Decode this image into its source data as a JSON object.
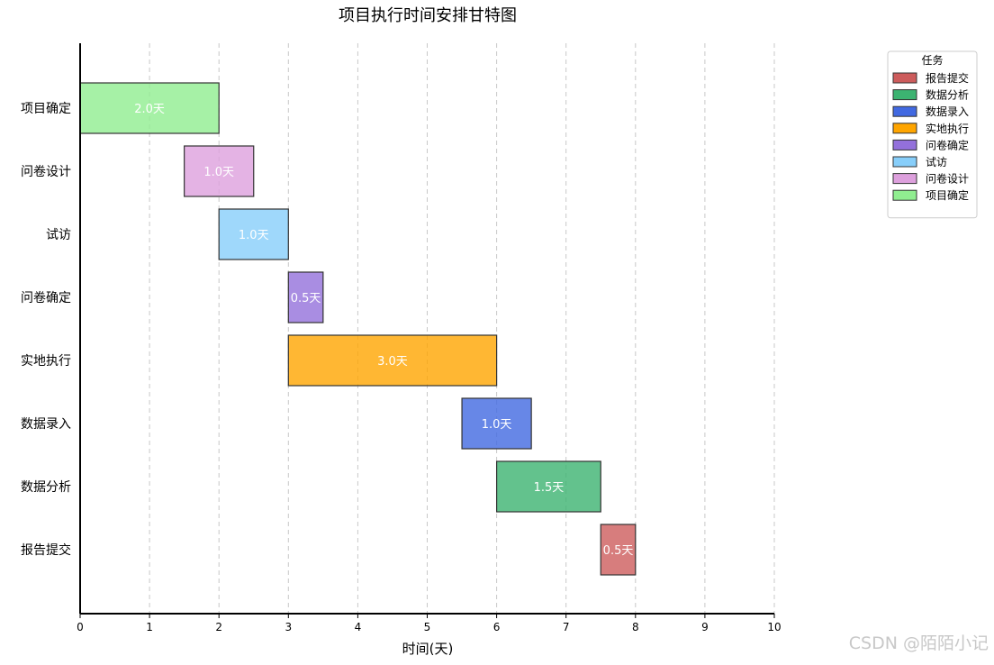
{
  "chart_data": {
    "type": "gantt",
    "title": "项目执行时间安排甘特图",
    "xlabel": "时间(天)",
    "ylabel": "",
    "xlim": [
      0,
      10
    ],
    "x_ticks": [
      0,
      1,
      2,
      3,
      4,
      5,
      6,
      7,
      8,
      9,
      10
    ],
    "grid": "vertical dashed",
    "tasks": [
      {
        "name": "项目确定",
        "start": 0.0,
        "duration": 2.0,
        "label": "2.0天",
        "color": "#90EE90"
      },
      {
        "name": "问卷设计",
        "start": 1.5,
        "duration": 1.0,
        "label": "1.0天",
        "color": "#DDA0DD"
      },
      {
        "name": "试访",
        "start": 2.0,
        "duration": 1.0,
        "label": "1.0天",
        "color": "#87CEFA"
      },
      {
        "name": "问卷确定",
        "start": 3.0,
        "duration": 0.5,
        "label": "0.5天",
        "color": "#9370DB"
      },
      {
        "name": "实地执行",
        "start": 3.0,
        "duration": 3.0,
        "label": "3.0天",
        "color": "#FFA500"
      },
      {
        "name": "数据录入",
        "start": 5.5,
        "duration": 1.0,
        "label": "1.0天",
        "color": "#4169E1"
      },
      {
        "name": "数据分析",
        "start": 6.0,
        "duration": 1.5,
        "label": "1.5天",
        "color": "#3CB371"
      },
      {
        "name": "报告提交",
        "start": 7.5,
        "duration": 0.5,
        "label": "0.5天",
        "color": "#CD5C5C"
      }
    ],
    "legend": {
      "title": "任务",
      "placement": "top-right, outside plot",
      "entries": [
        {
          "name": "报告提交",
          "color": "#CD5C5C"
        },
        {
          "name": "数据分析",
          "color": "#3CB371"
        },
        {
          "name": "数据录入",
          "color": "#4169E1"
        },
        {
          "name": "实地执行",
          "color": "#FFA500"
        },
        {
          "name": "问卷确定",
          "color": "#9370DB"
        },
        {
          "name": "试访",
          "color": "#87CEFA"
        },
        {
          "name": "问卷设计",
          "color": "#DDA0DD"
        },
        {
          "name": "项目确定",
          "color": "#90EE90"
        }
      ]
    }
  },
  "watermark": "CSDN @陌陌小记"
}
